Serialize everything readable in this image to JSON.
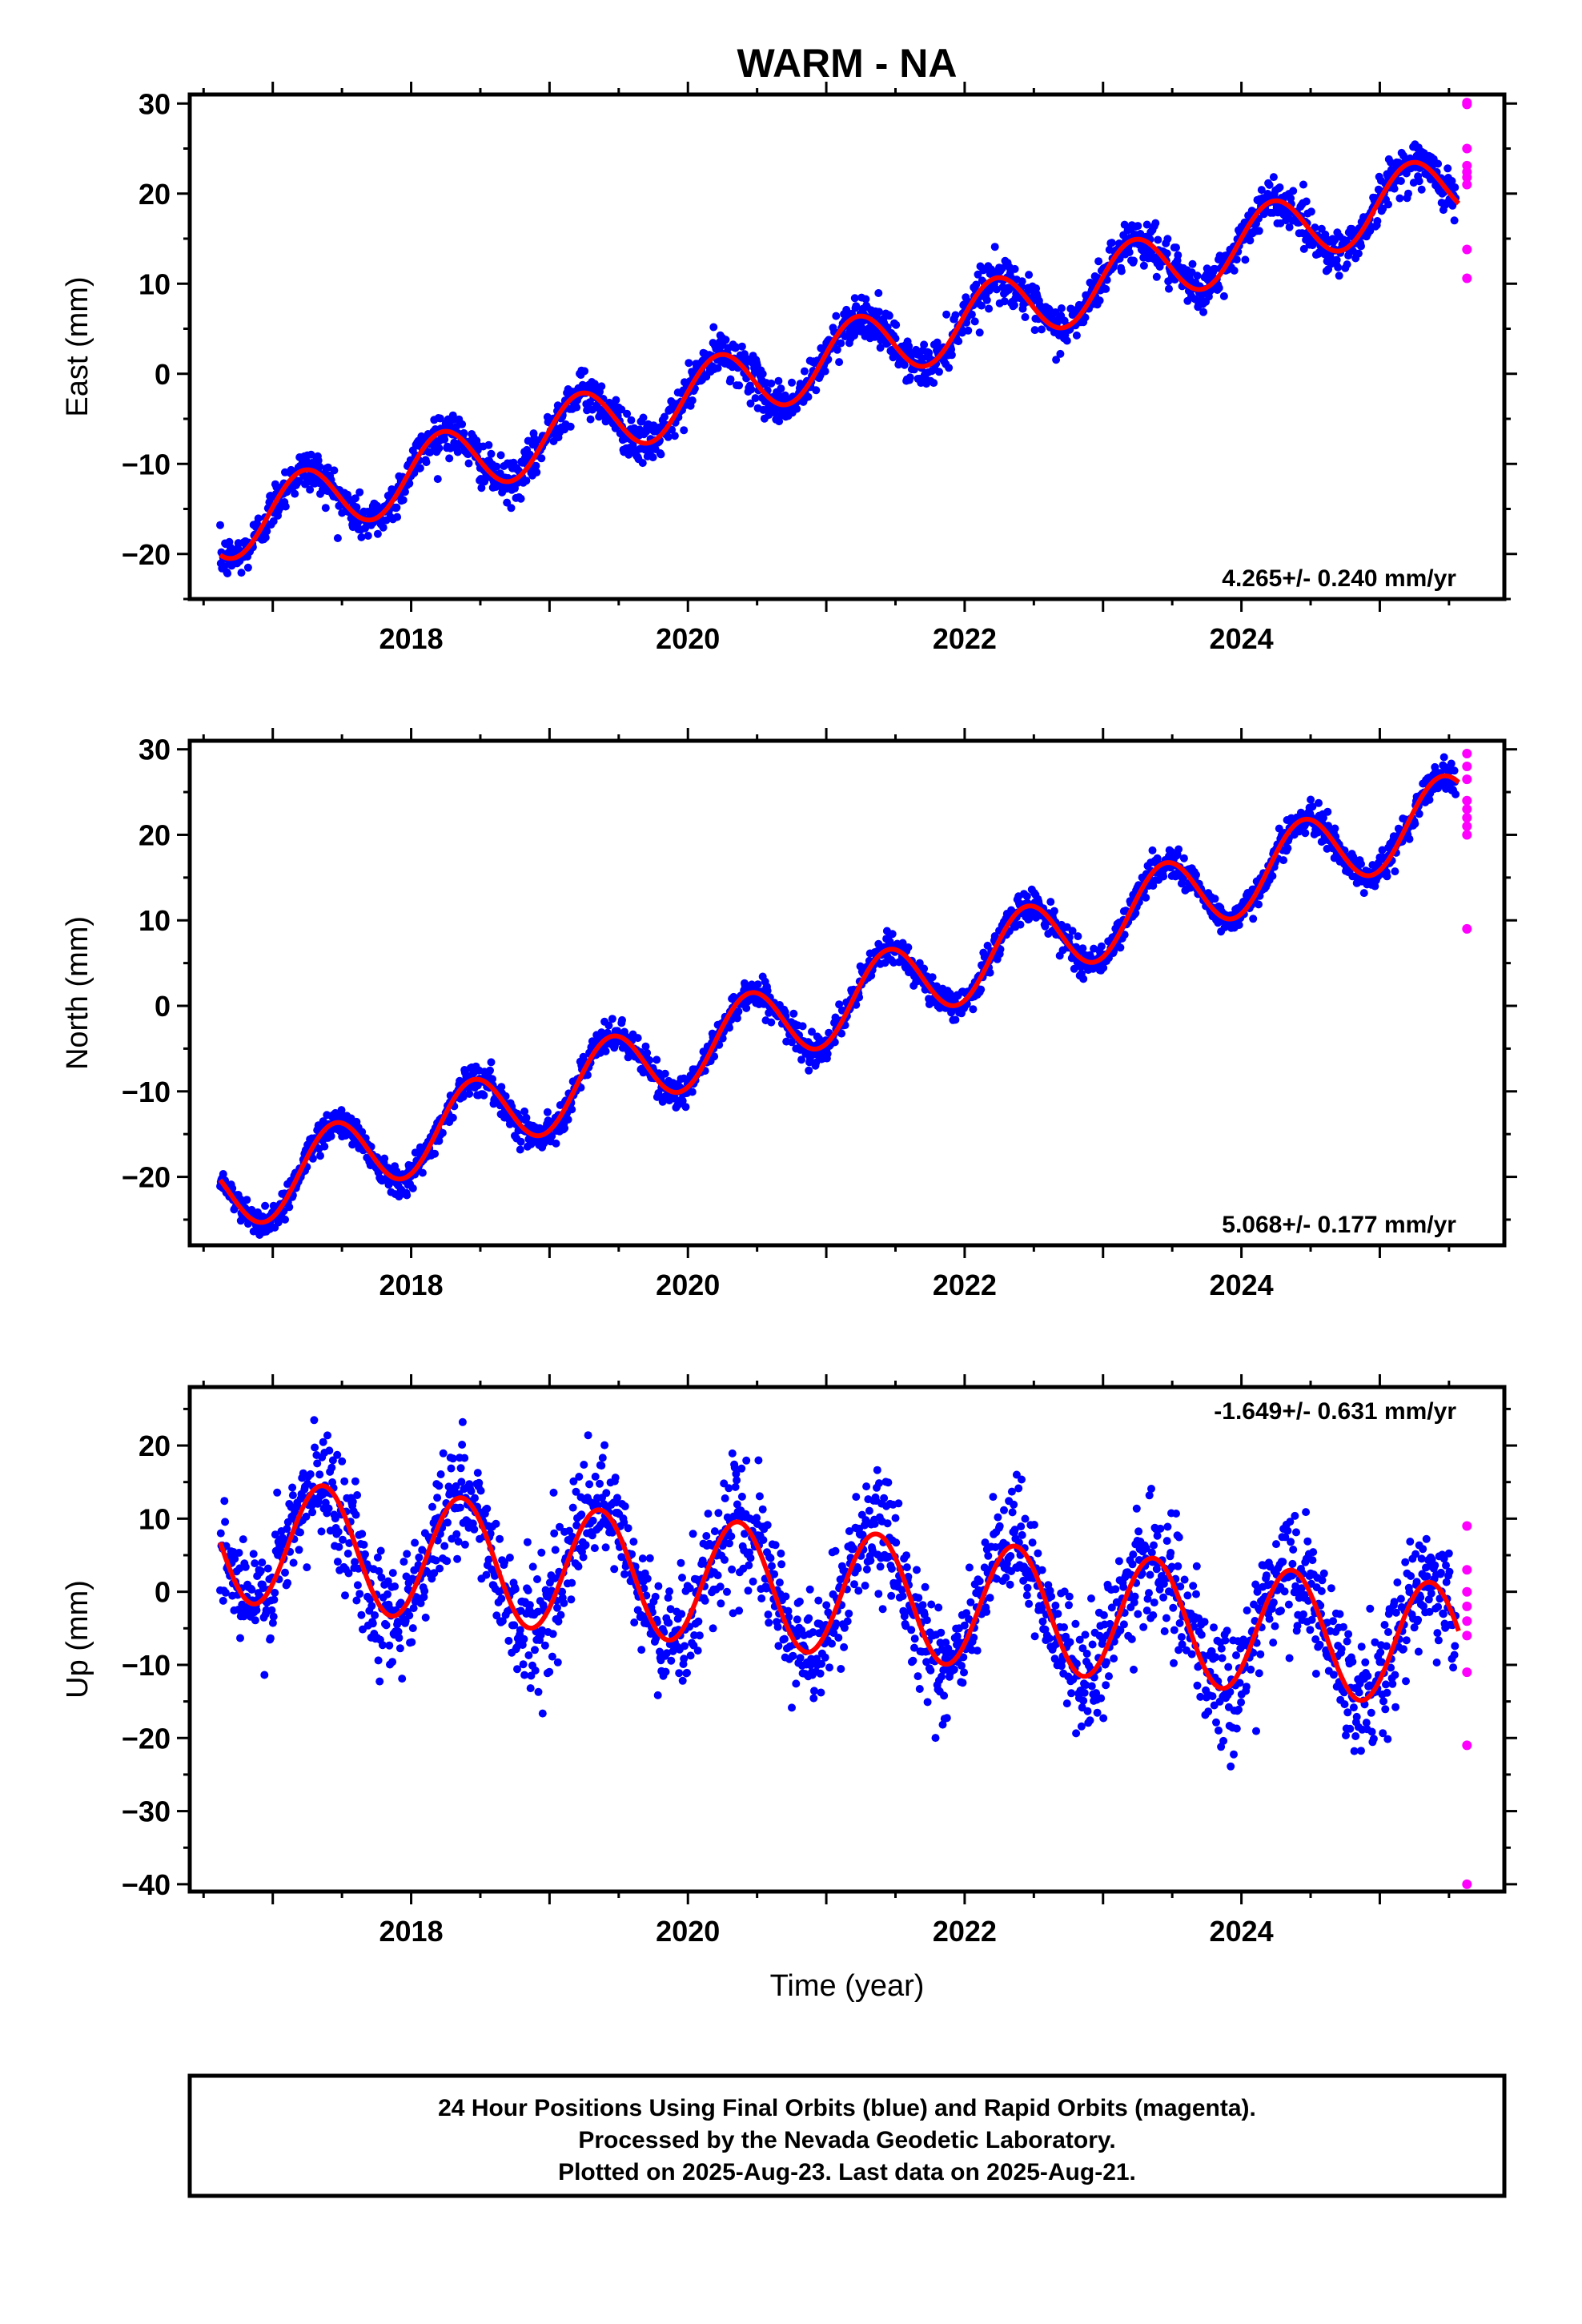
{
  "figure": {
    "title": "WARM - NA",
    "footer_lines": [
      "24 Hour Positions Using Final Orbits (blue) and Rapid Orbits (magenta).",
      "Processed by the Nevada Geodetic Laboratory.",
      "Plotted on 2025-Aug-23. Last data on 2025-Aug-21."
    ],
    "colors": {
      "final": "#0000ff",
      "rapid": "#ff00ff",
      "model": "#ff0000",
      "frame": "#000000"
    }
  },
  "chart_data": [
    {
      "type": "scatter",
      "component": "east",
      "ylabel": "East (mm)",
      "xlabel": "",
      "rate_label": "4.265+/- 0.240 mm/yr",
      "xlim": [
        2016.4,
        2025.9
      ],
      "ylim": [
        -25,
        31
      ],
      "yticks": [
        -20,
        -10,
        0,
        10,
        20,
        30
      ],
      "xticks": [
        2018,
        2020,
        2022,
        2024
      ],
      "x_start": 2016.62,
      "x_end_final": 2025.55,
      "trend": {
        "rate": 4.265,
        "value_at_2021": 1.6
      },
      "seasonal": {
        "annual_amp": 3.8,
        "annual_phase_deg": 10
      },
      "noise_sd": 1.2,
      "series": [
        {
          "name": "",
          "style": "final",
          "marker": "dot"
        },
        {
          "name": "",
          "style": "model",
          "marker": "line"
        }
      ],
      "rapid_points": [
        30.1,
        29.9,
        25.0,
        23.1,
        22.4,
        21.8,
        21.0,
        13.8,
        10.6
      ],
      "rapid_x": 2025.63
    },
    {
      "type": "scatter",
      "component": "north",
      "ylabel": "North (mm)",
      "xlabel": "",
      "rate_label": "5.068+/- 0.177 mm/yr",
      "xlim": [
        2016.4,
        2025.9
      ],
      "ylim": [
        -28,
        31
      ],
      "yticks": [
        -20,
        -10,
        0,
        10,
        20,
        30
      ],
      "xticks": [
        2018,
        2020,
        2022,
        2024
      ],
      "x_start": 2016.62,
      "x_end_final": 2025.55,
      "trend": {
        "rate": 5.068,
        "value_at_2021": -0.2
      },
      "seasonal": {
        "annual_amp": 4.5,
        "annual_phase_deg": -70
      },
      "noise_sd": 0.9,
      "series": [
        {
          "name": "",
          "style": "final",
          "marker": "dot"
        },
        {
          "name": "",
          "style": "model",
          "marker": "line"
        }
      ],
      "rapid_points": [
        29.5,
        28.0,
        26.5,
        24.0,
        23.0,
        22.0,
        21.0,
        20.0,
        9.0
      ],
      "rapid_x": 2025.63
    },
    {
      "type": "scatter",
      "component": "up",
      "ylabel": "Up (mm)",
      "xlabel": "Time (year)",
      "rate_label": "-1.649+/- 0.631 mm/yr",
      "xlim": [
        2016.4,
        2025.9
      ],
      "ylim": [
        -41,
        28
      ],
      "yticks": [
        -40,
        -30,
        -20,
        -10,
        0,
        10,
        20
      ],
      "xticks": [
        2018,
        2020,
        2022,
        2024
      ],
      "x_start": 2016.62,
      "x_end_final": 2025.55,
      "trend": {
        "rate": -1.649,
        "value_at_2021": 0.0
      },
      "seasonal": {
        "annual_amp": 8.5,
        "annual_phase_deg": -40
      },
      "noise_sd": 4.0,
      "series": [
        {
          "name": "",
          "style": "final",
          "marker": "dot"
        },
        {
          "name": "",
          "style": "model",
          "marker": "line"
        }
      ],
      "rapid_points": [
        9.0,
        3.0,
        0.0,
        -2.0,
        -4.0,
        -6.0,
        -11.0,
        -21.0,
        -40.0
      ],
      "rapid_x": 2025.63
    }
  ]
}
